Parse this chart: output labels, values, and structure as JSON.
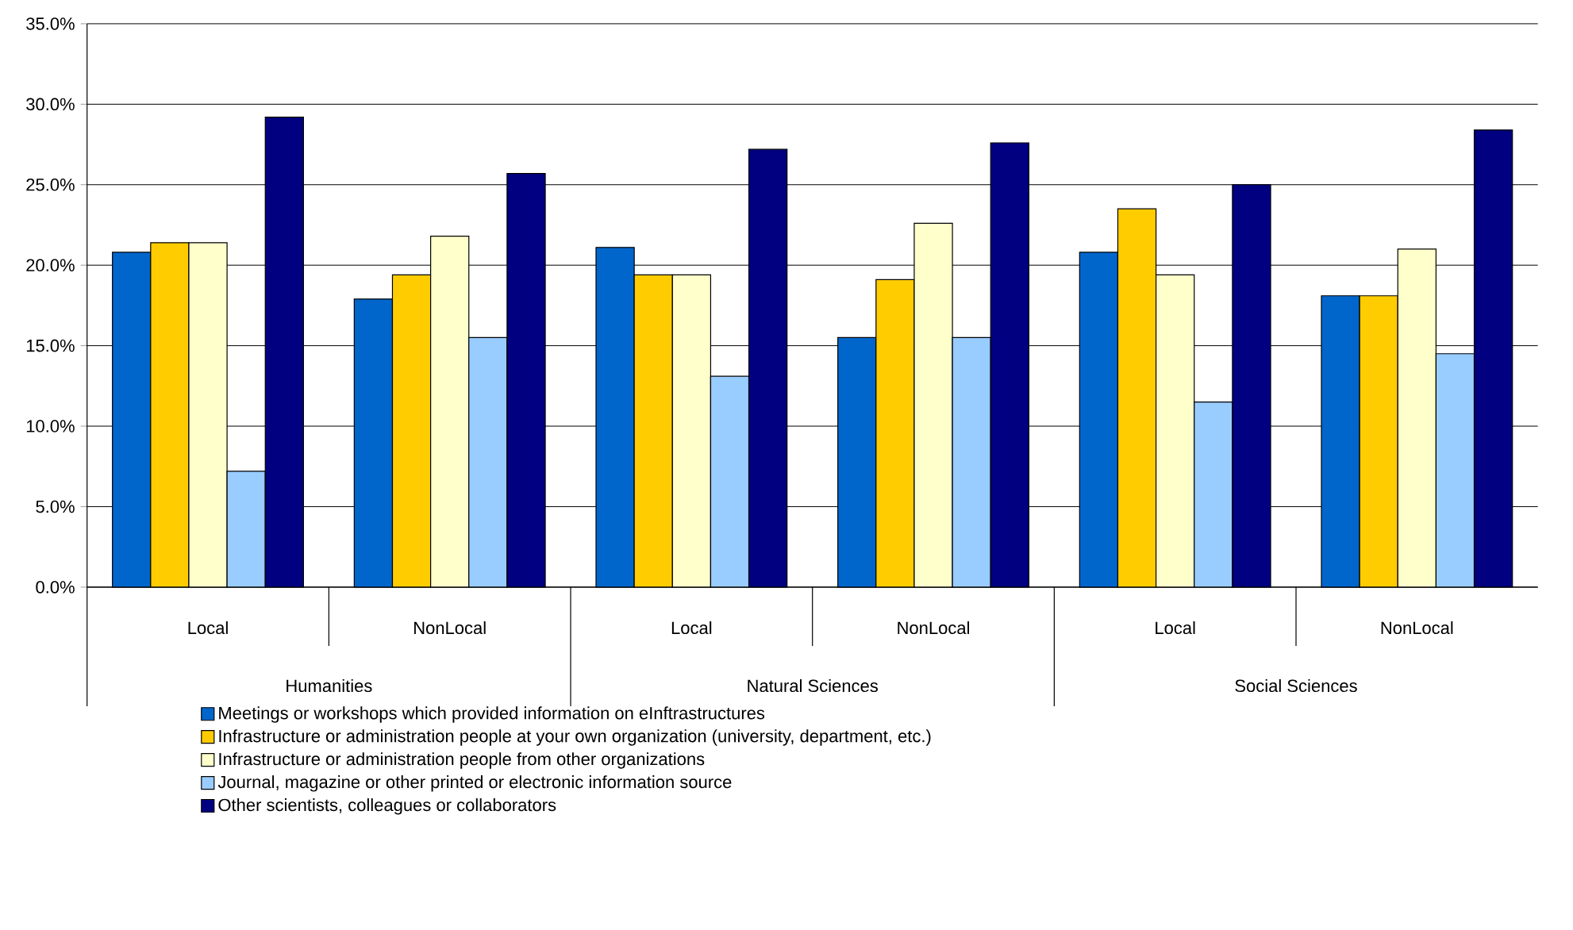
{
  "chart_data": {
    "type": "bar",
    "categories": [
      "Local",
      "NonLocal",
      "Local",
      "NonLocal",
      "Local",
      "NonLocal"
    ],
    "annotations": [
      "Humanities",
      "Natural Sciences",
      "Social Sciences"
    ],
    "series": [
      {
        "name": "Meetings or workshops which provided information on eInftrastructures",
        "color": "#0066cc",
        "values": [
          20.8,
          17.9,
          21.1,
          15.5,
          20.8,
          18.1
        ]
      },
      {
        "name": "Infrastructure or administration people at your own organization (university, department, etc.)",
        "color": "#ffcc00",
        "values": [
          21.4,
          19.4,
          19.4,
          19.1,
          23.5,
          18.1
        ]
      },
      {
        "name": "Infrastructure or administration people from other organizations",
        "color": "#ffffcc",
        "values": [
          21.4,
          21.8,
          19.4,
          22.6,
          19.4,
          21.0
        ]
      },
      {
        "name": "Journal, magazine or other printed or electronic information source",
        "color": "#99ccff",
        "values": [
          7.2,
          15.5,
          13.1,
          15.5,
          11.5,
          14.5
        ]
      },
      {
        "name": "Other scientists, colleagues or collaborators",
        "color": "#000080",
        "values": [
          29.2,
          25.7,
          27.2,
          27.6,
          25.0,
          28.4
        ]
      }
    ],
    "ylim": [
      0,
      35
    ],
    "yticks": [
      {
        "value": 0,
        "label": "0.0%"
      },
      {
        "value": 5,
        "label": "5.0%"
      },
      {
        "value": 10,
        "label": "10.0%"
      },
      {
        "value": 15,
        "label": "15.0%"
      },
      {
        "value": 20,
        "label": "20.0%"
      },
      {
        "value": 25,
        "label": "25.0%"
      },
      {
        "value": 30,
        "label": "30.0%"
      },
      {
        "value": 35,
        "label": "35.0%"
      }
    ],
    "grid": "y",
    "legend": "bottom"
  }
}
